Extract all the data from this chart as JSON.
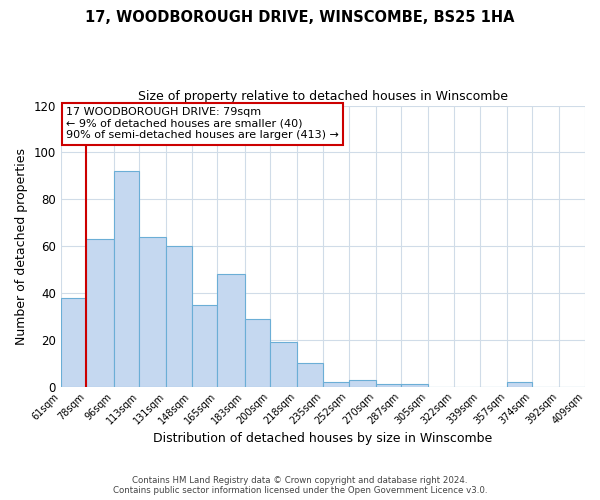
{
  "title": "17, WOODBOROUGH DRIVE, WINSCOMBE, BS25 1HA",
  "subtitle": "Size of property relative to detached houses in Winscombe",
  "xlabel": "Distribution of detached houses by size in Winscombe",
  "ylabel": "Number of detached properties",
  "bar_values": [
    38,
    63,
    92,
    64,
    60,
    35,
    48,
    29,
    19,
    10,
    2,
    3,
    1,
    1,
    0,
    0,
    0,
    2,
    0,
    0
  ],
  "bin_edges": [
    61,
    78,
    96,
    113,
    131,
    148,
    165,
    183,
    200,
    218,
    235,
    252,
    270,
    287,
    305,
    322,
    339,
    357,
    374,
    392,
    409
  ],
  "bin_labels": [
    "61sqm",
    "78sqm",
    "96sqm",
    "113sqm",
    "131sqm",
    "148sqm",
    "165sqm",
    "183sqm",
    "200sqm",
    "218sqm",
    "235sqm",
    "252sqm",
    "270sqm",
    "287sqm",
    "305sqm",
    "322sqm",
    "339sqm",
    "357sqm",
    "374sqm",
    "392sqm",
    "409sqm"
  ],
  "bar_color": "#c5d8f0",
  "bar_edgecolor": "#6baed6",
  "vline_x": 78,
  "vline_color": "#cc0000",
  "ylim": [
    0,
    120
  ],
  "yticks": [
    0,
    20,
    40,
    60,
    80,
    100,
    120
  ],
  "annotation_title": "17 WOODBOROUGH DRIVE: 79sqm",
  "annotation_line1": "← 9% of detached houses are smaller (40)",
  "annotation_line2": "90% of semi-detached houses are larger (413) →",
  "annotation_box_color": "#ffffff",
  "annotation_box_edgecolor": "#cc0000",
  "footer_line1": "Contains HM Land Registry data © Crown copyright and database right 2024.",
  "footer_line2": "Contains public sector information licensed under the Open Government Licence v3.0.",
  "background_color": "#ffffff",
  "grid_color": "#d0dce8"
}
